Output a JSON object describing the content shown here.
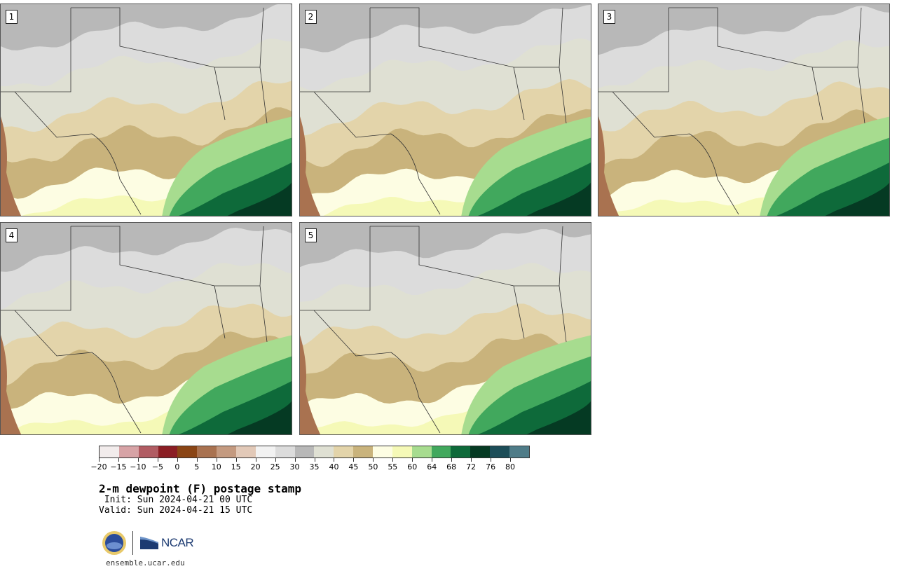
{
  "panels": [
    {
      "label": "1"
    },
    {
      "label": "2"
    },
    {
      "label": "3"
    },
    {
      "label": "4"
    },
    {
      "label": "5"
    }
  ],
  "colorbar": {
    "colors": [
      "#f2ecec",
      "#d7a3a6",
      "#b15c63",
      "#8b1e24",
      "#8a4515",
      "#a97250",
      "#c49a80",
      "#e2c9b8",
      "#f2f2f2",
      "#dcdcdc",
      "#b8b8b8",
      "#dfe0d3",
      "#e3d4aa",
      "#c9b37c",
      "#fdfde3",
      "#f5f9b7",
      "#a7dc8f",
      "#41a85d",
      "#0e6a3a",
      "#053a23",
      "#1c4d58",
      "#4f7c88"
    ],
    "ticks": [
      "−20",
      "−15",
      "−10",
      "−5",
      "0",
      "5",
      "10",
      "15",
      "20",
      "25",
      "30",
      "35",
      "40",
      "45",
      "50",
      "55",
      "60",
      "64",
      "68",
      "72",
      "76",
      "80"
    ]
  },
  "title": "2-m dewpoint (F) postage stamp",
  "init": " Init: Sun 2024-04-21 00 UTC",
  "valid": "Valid: Sun 2024-04-21 15 UTC",
  "logos": {
    "nsf": "NSF",
    "ncar": "NCAR"
  },
  "website": "ensemble.ucar.edu"
}
